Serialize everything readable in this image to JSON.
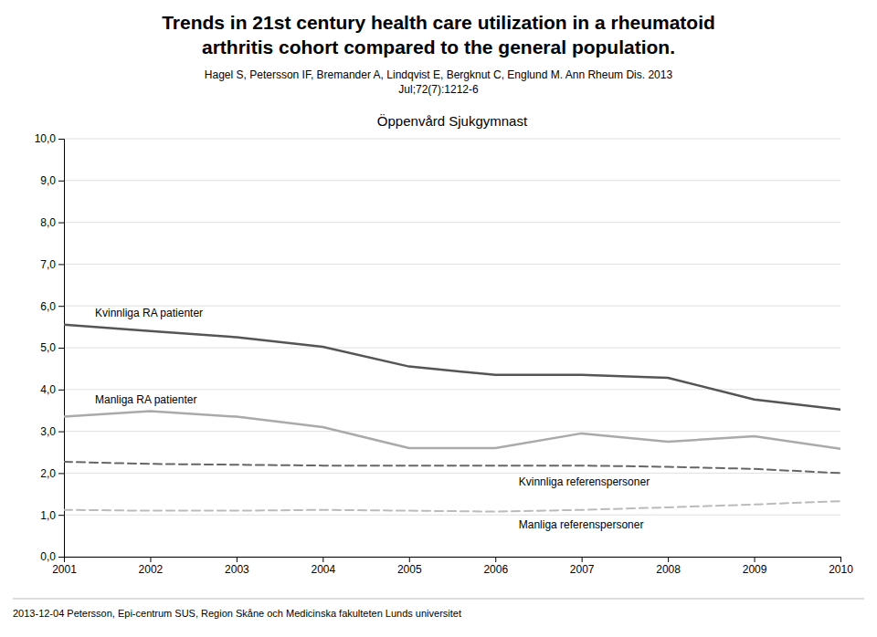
{
  "chart_data": {
    "type": "line",
    "title": [
      "Trends in 21st century health care utilization in a rheumatoid",
      "arthritis cohort compared to the general population."
    ],
    "subtitle": [
      "Hagel S, Petersson IF, Bremander A, Lindqvist E, Bergknut C, Englund M. Ann Rheum Dis. 2013",
      "Jul;72(7):1212-6"
    ],
    "annotations": [
      "Öppenvård Sjukgymnast",
      "2013-12-04 Petersson, Epi-centrum SUS, Region Skåne och Medicinska fakulteten Lunds universitet"
    ],
    "x": [
      2001,
      2002,
      2003,
      2004,
      2005,
      2006,
      2007,
      2008,
      2009,
      2010
    ],
    "series": [
      {
        "name": "Kvinnliga RA patienter",
        "color": "#555555",
        "line_style": "solid",
        "values": [
          5.55,
          5.4,
          5.25,
          5.02,
          4.55,
          4.35,
          4.35,
          4.28,
          3.76,
          3.52
        ]
      },
      {
        "name": "Manliga RA patienter",
        "color": "#aaaaaa",
        "line_style": "solid",
        "values": [
          3.35,
          3.48,
          3.35,
          3.1,
          2.6,
          2.6,
          2.95,
          2.75,
          2.88,
          2.58
        ]
      },
      {
        "name": "Kvinnliga referenspersoner",
        "color": "#666666",
        "line_style": "dashed",
        "values": [
          2.27,
          2.22,
          2.2,
          2.18,
          2.18,
          2.18,
          2.18,
          2.15,
          2.1,
          2.0
        ]
      },
      {
        "name": "Manliga referenspersoner",
        "color": "#bbbbbb",
        "line_style": "dashed",
        "values": [
          1.12,
          1.1,
          1.1,
          1.12,
          1.1,
          1.08,
          1.12,
          1.18,
          1.25,
          1.33
        ]
      }
    ],
    "xlim": [
      2001,
      2010
    ],
    "xticks": [
      2001,
      2002,
      2003,
      2004,
      2005,
      2006,
      2007,
      2008,
      2009,
      2010
    ],
    "ylim": [
      0,
      10
    ],
    "yticks": [
      {
        "value": 0,
        "label": "0,0"
      },
      {
        "value": 1,
        "label": "1,0"
      },
      {
        "value": 2,
        "label": "2,0"
      },
      {
        "value": 3,
        "label": "3,0"
      },
      {
        "value": 4,
        "label": "4,0"
      },
      {
        "value": 5,
        "label": "5,0"
      },
      {
        "value": 6,
        "label": "6,0"
      },
      {
        "value": 7,
        "label": "7,0"
      },
      {
        "value": 8,
        "label": "8,0"
      },
      {
        "value": 9,
        "label": "9,0"
      },
      {
        "value": 10,
        "label": "10,0"
      }
    ],
    "grid": true
  }
}
